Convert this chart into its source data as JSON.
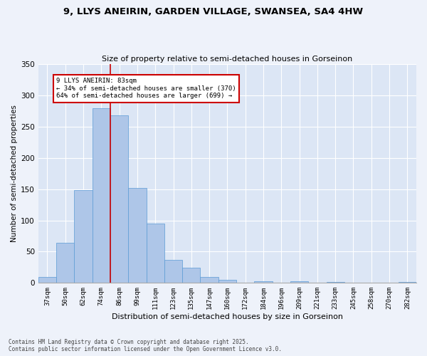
{
  "title_line1": "9, LLYS ANEIRIN, GARDEN VILLAGE, SWANSEA, SA4 4HW",
  "title_line2": "Size of property relative to semi-detached houses in Gorseinon",
  "xlabel": "Distribution of semi-detached houses by size in Gorseinon",
  "ylabel": "Number of semi-detached properties",
  "categories": [
    "37sqm",
    "50sqm",
    "62sqm",
    "74sqm",
    "86sqm",
    "99sqm",
    "111sqm",
    "123sqm",
    "135sqm",
    "147sqm",
    "160sqm",
    "172sqm",
    "184sqm",
    "196sqm",
    "209sqm",
    "221sqm",
    "233sqm",
    "245sqm",
    "258sqm",
    "270sqm",
    "282sqm"
  ],
  "values": [
    10,
    64,
    148,
    280,
    268,
    152,
    95,
    37,
    24,
    9,
    5,
    0,
    3,
    0,
    3,
    0,
    1,
    0,
    0,
    0,
    2
  ],
  "bar_color": "#aec6e8",
  "bar_edge_color": "#5b9bd5",
  "vline_x_index": 3.5,
  "vline_color": "#cc0000",
  "annotation_title": "9 LLYS ANEIRIN: 83sqm",
  "annotation_line1": "← 34% of semi-detached houses are smaller (370)",
  "annotation_line2": "64% of semi-detached houses are larger (699) →",
  "annotation_box_color": "#cc0000",
  "ylim": [
    0,
    350
  ],
  "yticks": [
    0,
    50,
    100,
    150,
    200,
    250,
    300,
    350
  ],
  "fig_background": "#eef2fa",
  "ax_background": "#dce6f5",
  "footer_line1": "Contains HM Land Registry data © Crown copyright and database right 2025.",
  "footer_line2": "Contains public sector information licensed under the Open Government Licence v3.0."
}
